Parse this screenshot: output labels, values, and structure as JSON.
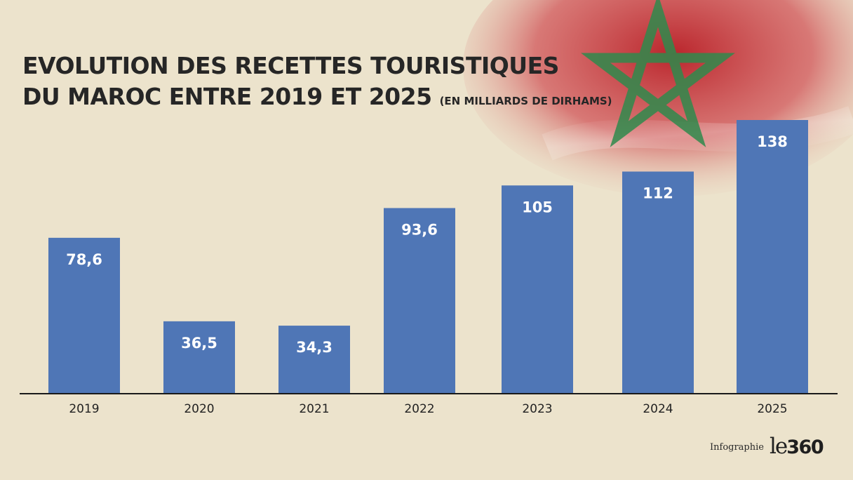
{
  "colors": {
    "background": "#ece3cc",
    "bar": "#4f76b6",
    "bar_label": "#ffffff",
    "axis": "#1a1a1a",
    "title": "#262626",
    "flag_red": "#c1272d",
    "flag_star_green": "#2f8a4c"
  },
  "decoration": {
    "flag": "morocco-flag-with-green-star"
  },
  "credit": {
    "label": "Infographie",
    "brand_prefix": "le",
    "brand_suffix": "360"
  },
  "chart_data": {
    "type": "bar",
    "title_line1": "EVOLUTION DES RECETTES TOURISTIQUES",
    "title_line2": "DU MAROC ENTRE 2019 ET 2025",
    "unit_note": "(EN  MILLIARDS DE DIRHAMS)",
    "xlabel": "",
    "ylabel": "",
    "grid": false,
    "legend": "none",
    "categories": [
      "2019",
      "2020",
      "2021",
      "2022",
      "2023",
      "2024",
      "2025"
    ],
    "values": [
      78.6,
      36.5,
      34.3,
      93.6,
      105,
      112,
      138
    ],
    "data_labels": [
      "78,6",
      "36,5",
      "34,3",
      "93,6",
      "105",
      "112",
      "138"
    ],
    "ylim": [
      0,
      138
    ]
  }
}
